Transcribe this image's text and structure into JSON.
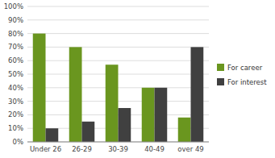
{
  "chart_data": {
    "type": "bar",
    "categories": [
      "Under 26",
      "26-29",
      "30-39",
      "40-49",
      "over 49"
    ],
    "series": [
      {
        "name": "For career",
        "color": "#6a961f",
        "values": [
          80,
          70,
          57,
          40,
          18
        ]
      },
      {
        "name": "For interest",
        "color": "#404040",
        "values": [
          10,
          15,
          25,
          40,
          70
        ]
      }
    ],
    "ylim": [
      0,
      100
    ],
    "yticks": [
      {
        "value": 0,
        "label": "0%"
      },
      {
        "value": 10,
        "label": "10%"
      },
      {
        "value": 20,
        "label": "20%"
      },
      {
        "value": 30,
        "label": "30%"
      },
      {
        "value": 40,
        "label": "40%"
      },
      {
        "value": 50,
        "label": "50%"
      },
      {
        "value": 60,
        "label": "60%"
      },
      {
        "value": 70,
        "label": "70%"
      },
      {
        "value": 80,
        "label": "80%"
      },
      {
        "value": 90,
        "label": "90%"
      },
      {
        "value": 100,
        "label": "100%"
      }
    ],
    "grid": true,
    "legend": "right"
  }
}
